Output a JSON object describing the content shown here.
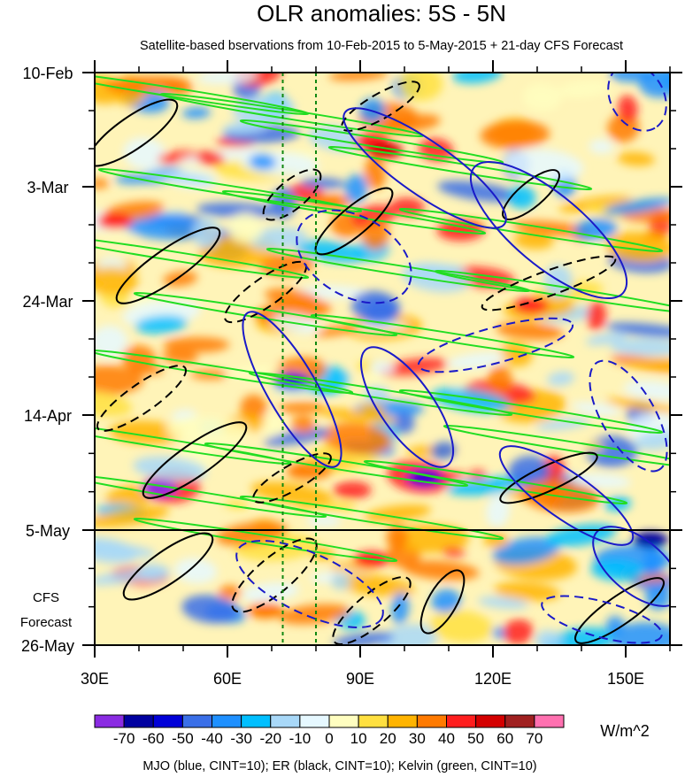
{
  "chart_data": {
    "type": "heatmap",
    "title": "OLR anomalies: 5S - 5N",
    "subtitle": "Satellite-based bservations from 10-Feb-2015 to 5-May-2015 + 21-day CFS Forecast",
    "x_ticks": [
      "30E",
      "60E",
      "90E",
      "120E",
      "150E"
    ],
    "x_tick_values": [
      30,
      60,
      90,
      120,
      150
    ],
    "xlim": [
      30,
      160
    ],
    "y_ticks": [
      "10-Feb",
      "3-Mar",
      "24-Mar",
      "14-Apr",
      "5-May",
      "26-May"
    ],
    "forecast_start": "5-May",
    "forecast_label_line1": "CFS",
    "forecast_label_line2": "Forecast",
    "reference_lines_lon": [
      72.5,
      80
    ],
    "colorbar": {
      "levels": [
        "-70",
        "-60",
        "-50",
        "-40",
        "-30",
        "-20",
        "-10",
        "0",
        "10",
        "20",
        "30",
        "40",
        "50",
        "60",
        "70"
      ],
      "colors": [
        "#8a2be2",
        "#0000a0",
        "#0000d8",
        "#3a6fe8",
        "#1e90ff",
        "#00bfff",
        "#a8d8f8",
        "#e6f8ff",
        "#fffec0",
        "#ffe040",
        "#ffb400",
        "#ff7a00",
        "#ff1e1e",
        "#d40000",
        "#a02020",
        "#ff70b0"
      ],
      "unit": "W/m^2"
    },
    "legend_text": "MJO (blue, CINT=10); ER (black, CINT=10); Kelvin (green, CINT=10)",
    "series": [
      {
        "name": "MJO",
        "color": "#1a1ac8"
      },
      {
        "name": "ER",
        "color": "#000000"
      },
      {
        "name": "Kelvin",
        "color": "#22dd22"
      }
    ]
  }
}
